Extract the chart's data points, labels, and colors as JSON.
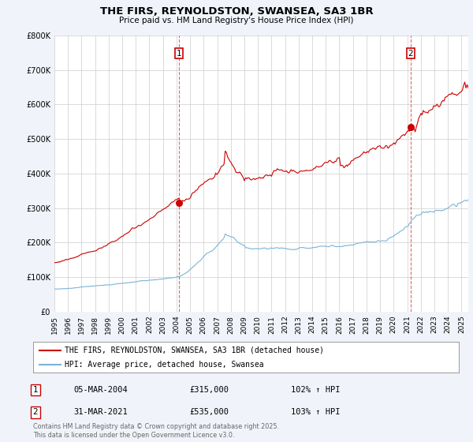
{
  "title": "THE FIRS, REYNOLDSTON, SWANSEA, SA3 1BR",
  "subtitle": "Price paid vs. HM Land Registry's House Price Index (HPI)",
  "bg_color": "#f0f4fa",
  "plot_bg_color": "#ffffff",
  "grid_color": "#cccccc",
  "red_color": "#cc0000",
  "blue_color": "#7ab4d8",
  "ylim": [
    0,
    800000
  ],
  "yticks": [
    0,
    100000,
    200000,
    300000,
    400000,
    500000,
    600000,
    700000,
    800000
  ],
  "ytick_labels": [
    "£0",
    "£100K",
    "£200K",
    "£300K",
    "£400K",
    "£500K",
    "£600K",
    "£700K",
    "£800K"
  ],
  "xmin": 1995.0,
  "xmax": 2025.5,
  "marker1_x": 2004.17,
  "marker1_y": 315000,
  "marker1_label": "1",
  "marker1_date": "05-MAR-2004",
  "marker1_price": "£315,000",
  "marker1_hpi": "102% ↑ HPI",
  "marker2_x": 2021.25,
  "marker2_y": 535000,
  "marker2_label": "2",
  "marker2_date": "31-MAR-2021",
  "marker2_price": "£535,000",
  "marker2_hpi": "103% ↑ HPI",
  "legend_line1": "THE FIRS, REYNOLDSTON, SWANSEA, SA3 1BR (detached house)",
  "legend_line2": "HPI: Average price, detached house, Swansea",
  "footnote": "Contains HM Land Registry data © Crown copyright and database right 2025.\nThis data is licensed under the Open Government Licence v3.0."
}
